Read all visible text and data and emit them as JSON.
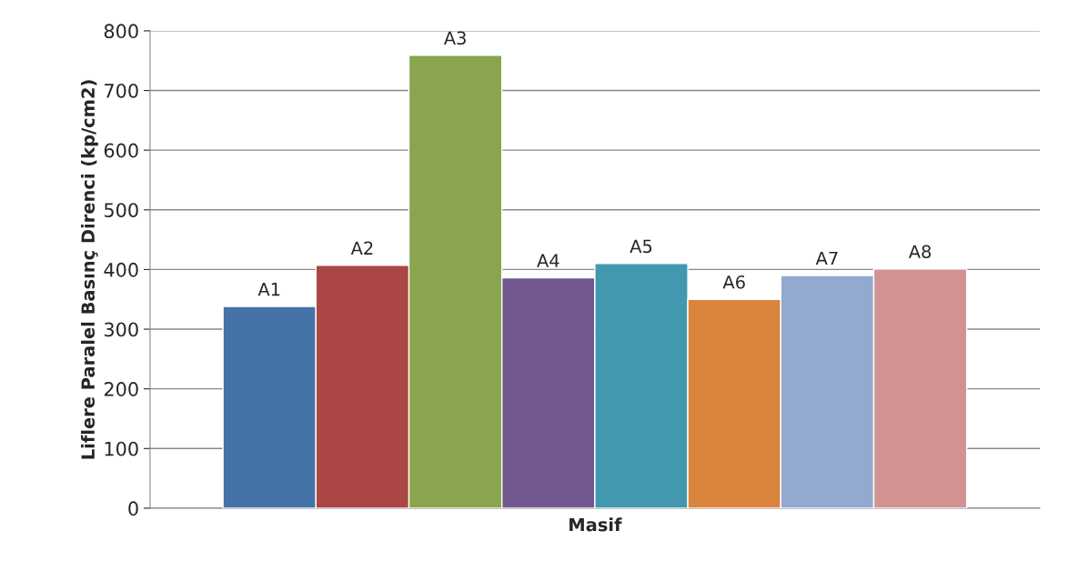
{
  "chart_data": {
    "type": "bar",
    "ylabel": "Liflere Paralel Basınç Direnci (kp/cm2)",
    "xlabel": "Masif",
    "categories": [
      null
    ],
    "series": [
      {
        "name": "A1",
        "color": "#4572a7",
        "values": [
          338
        ]
      },
      {
        "name": "A2",
        "color": "#aa4643",
        "values": [
          407
        ]
      },
      {
        "name": "A3",
        "color": "#89a54e",
        "values": [
          759
        ]
      },
      {
        "name": "A4",
        "color": "#71588f",
        "values": [
          386
        ]
      },
      {
        "name": "A5",
        "color": "#4198af",
        "values": [
          410
        ]
      },
      {
        "name": "A6",
        "color": "#db843d",
        "values": [
          350
        ]
      },
      {
        "name": "A7",
        "color": "#93a9cf",
        "values": [
          390
        ]
      },
      {
        "name": "A8",
        "color": "#d19392",
        "values": [
          401
        ]
      }
    ],
    "ylim": [
      0,
      800
    ],
    "yticks": [
      0,
      100,
      200,
      300,
      400,
      500,
      600,
      700,
      800
    ],
    "grid": "y",
    "legend": false
  }
}
